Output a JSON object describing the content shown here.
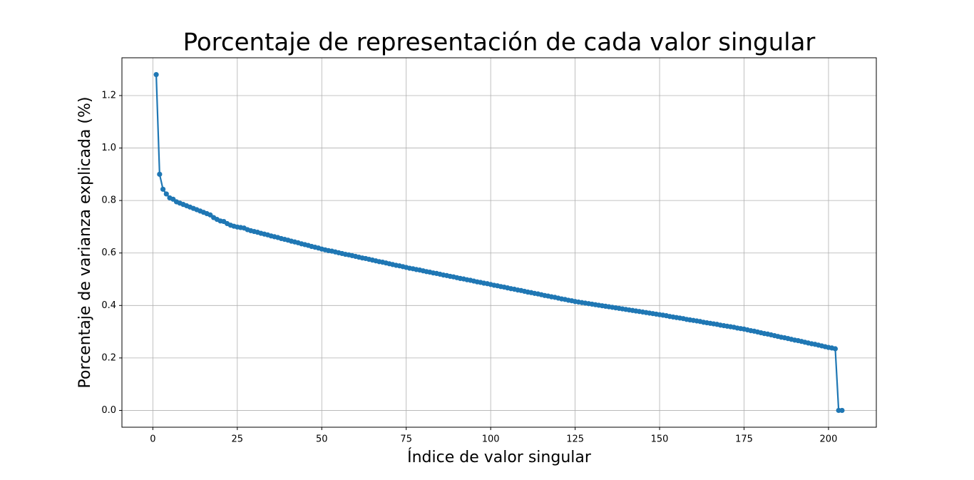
{
  "chart_data": {
    "type": "line",
    "title": "Porcentaje de representación de cada valor singular",
    "x_label": "Índice de valor singular",
    "y_label": "Porcentaje de varianza explicada (%)",
    "color": "#1f77b4",
    "grid": true,
    "xlim": [
      -9.15,
      214.15
    ],
    "ylim": [
      -0.064,
      1.344
    ],
    "xticks": [
      0,
      25,
      50,
      75,
      100,
      125,
      150,
      175,
      200
    ],
    "yticks": [
      {
        "value": 0,
        "label": "0.0"
      },
      0.2,
      0.4,
      0.6,
      0.8,
      {
        "value": 1,
        "label": "1.0"
      },
      1.2
    ],
    "x": [
      1,
      2,
      3,
      4,
      5,
      6,
      7,
      8,
      9,
      10,
      11,
      12,
      13,
      14,
      15,
      16,
      17,
      18,
      19,
      20,
      21,
      22,
      23,
      24,
      25,
      26,
      27,
      28,
      29,
      30,
      31,
      32,
      33,
      34,
      35,
      36,
      37,
      38,
      39,
      40,
      41,
      42,
      43,
      44,
      45,
      46,
      47,
      48,
      49,
      50,
      51,
      52,
      53,
      54,
      55,
      56,
      57,
      58,
      59,
      60,
      61,
      62,
      63,
      64,
      65,
      66,
      67,
      68,
      69,
      70,
      71,
      72,
      73,
      74,
      75,
      76,
      77,
      78,
      79,
      80,
      81,
      82,
      83,
      84,
      85,
      86,
      87,
      88,
      89,
      90,
      91,
      92,
      93,
      94,
      95,
      96,
      97,
      98,
      99,
      100,
      101,
      102,
      103,
      104,
      105,
      106,
      107,
      108,
      109,
      110,
      111,
      112,
      113,
      114,
      115,
      116,
      117,
      118,
      119,
      120,
      121,
      122,
      123,
      124,
      125,
      126,
      127,
      128,
      129,
      130,
      131,
      132,
      133,
      134,
      135,
      136,
      137,
      138,
      139,
      140,
      141,
      142,
      143,
      144,
      145,
      146,
      147,
      148,
      149,
      150,
      151,
      152,
      153,
      154,
      155,
      156,
      157,
      158,
      159,
      160,
      161,
      162,
      163,
      164,
      165,
      166,
      167,
      168,
      169,
      170,
      171,
      172,
      173,
      174,
      175,
      176,
      177,
      178,
      179,
      180,
      181,
      182,
      183,
      184,
      185,
      186,
      187,
      188,
      189,
      190,
      191,
      192,
      193,
      194,
      195,
      196,
      197,
      198,
      199,
      200,
      201,
      202,
      203,
      204
    ],
    "values": [
      1.28,
      0.9,
      0.843,
      0.825,
      0.81,
      0.805,
      0.795,
      0.79,
      0.785,
      0.78,
      0.775,
      0.77,
      0.765,
      0.76,
      0.755,
      0.75,
      0.745,
      0.735,
      0.728,
      0.722,
      0.72,
      0.712,
      0.706,
      0.702,
      0.699,
      0.697,
      0.695,
      0.689,
      0.685,
      0.682,
      0.679,
      0.675,
      0.672,
      0.669,
      0.665,
      0.662,
      0.659,
      0.655,
      0.652,
      0.649,
      0.645,
      0.642,
      0.639,
      0.635,
      0.632,
      0.629,
      0.625,
      0.622,
      0.619,
      0.615,
      0.612,
      0.609,
      0.607,
      0.604,
      0.601,
      0.598,
      0.595,
      0.593,
      0.59,
      0.587,
      0.584,
      0.581,
      0.579,
      0.576,
      0.573,
      0.57,
      0.567,
      0.565,
      0.562,
      0.559,
      0.556,
      0.553,
      0.551,
      0.548,
      0.545,
      0.542,
      0.54,
      0.537,
      0.535,
      0.532,
      0.529,
      0.527,
      0.524,
      0.522,
      0.519,
      0.516,
      0.514,
      0.511,
      0.509,
      0.506,
      0.503,
      0.501,
      0.498,
      0.496,
      0.493,
      0.49,
      0.488,
      0.485,
      0.483,
      0.48,
      0.477,
      0.475,
      0.472,
      0.47,
      0.467,
      0.464,
      0.462,
      0.459,
      0.457,
      0.454,
      0.451,
      0.449,
      0.446,
      0.444,
      0.441,
      0.438,
      0.436,
      0.433,
      0.431,
      0.428,
      0.425,
      0.423,
      0.42,
      0.418,
      0.415,
      0.413,
      0.411,
      0.409,
      0.407,
      0.405,
      0.403,
      0.401,
      0.399,
      0.397,
      0.395,
      0.393,
      0.391,
      0.389,
      0.387,
      0.385,
      0.383,
      0.381,
      0.379,
      0.377,
      0.375,
      0.373,
      0.371,
      0.369,
      0.367,
      0.365,
      0.363,
      0.361,
      0.358,
      0.356,
      0.354,
      0.352,
      0.35,
      0.347,
      0.345,
      0.343,
      0.341,
      0.339,
      0.336,
      0.334,
      0.332,
      0.33,
      0.328,
      0.325,
      0.323,
      0.321,
      0.319,
      0.317,
      0.314,
      0.312,
      0.31,
      0.307,
      0.304,
      0.302,
      0.299,
      0.296,
      0.293,
      0.291,
      0.288,
      0.285,
      0.282,
      0.279,
      0.277,
      0.274,
      0.271,
      0.268,
      0.266,
      0.263,
      0.26,
      0.257,
      0.254,
      0.252,
      0.249,
      0.246,
      0.243,
      0.24,
      0.238,
      0.235,
      0,
      0
    ]
  }
}
